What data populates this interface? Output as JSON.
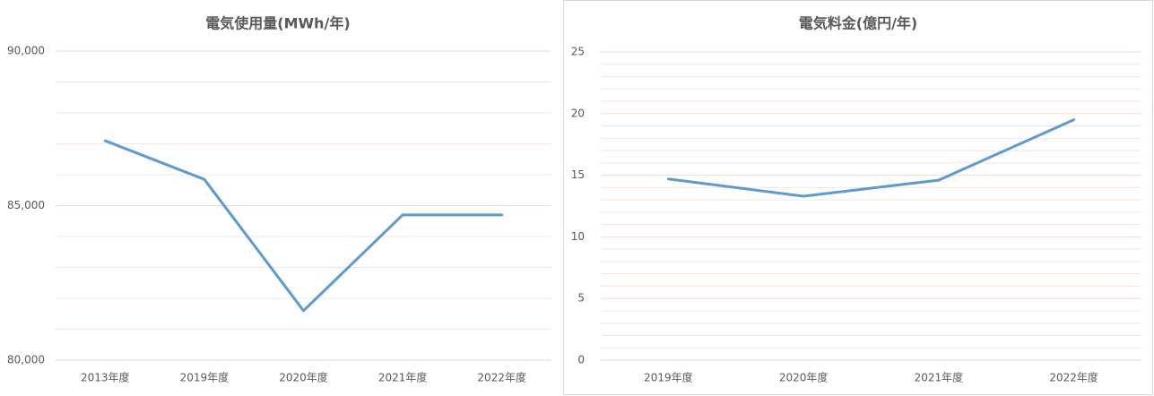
{
  "chart_data": [
    {
      "type": "line",
      "title": "電気使用量(MWh/年)",
      "categories": [
        "2013年度",
        "2019年度",
        "2020年度",
        "2021年度",
        "2022年度"
      ],
      "values": [
        87100,
        85850,
        81600,
        84700,
        84700
      ],
      "color": "#5b9bd5",
      "ylim": [
        80000,
        90000
      ],
      "yticks": [
        {
          "value": 80000,
          "label": "80,000"
        },
        {
          "value": 85000,
          "label": "85,000"
        },
        {
          "value": 90000,
          "label": "90,000"
        }
      ],
      "minor_yticks": [
        81000,
        82000,
        83000,
        84000,
        86000,
        87000,
        88000,
        89000
      ],
      "grid": true
    },
    {
      "type": "line",
      "title": "電気料金(億円/年)",
      "categories": [
        "2019年度",
        "2020年度",
        "2021年度",
        "2022年度"
      ],
      "values": [
        14.7,
        13.3,
        14.6,
        19.5
      ],
      "color": "#5b9bd5",
      "ylim": [
        0,
        25
      ],
      "yticks": [
        0,
        5,
        10,
        15,
        20,
        25
      ],
      "minor_yticks": [
        1,
        2,
        3,
        4,
        6,
        7,
        8,
        9,
        11,
        12,
        13,
        14,
        16,
        17,
        18,
        19,
        21,
        22,
        23,
        24
      ],
      "grid": true
    }
  ]
}
